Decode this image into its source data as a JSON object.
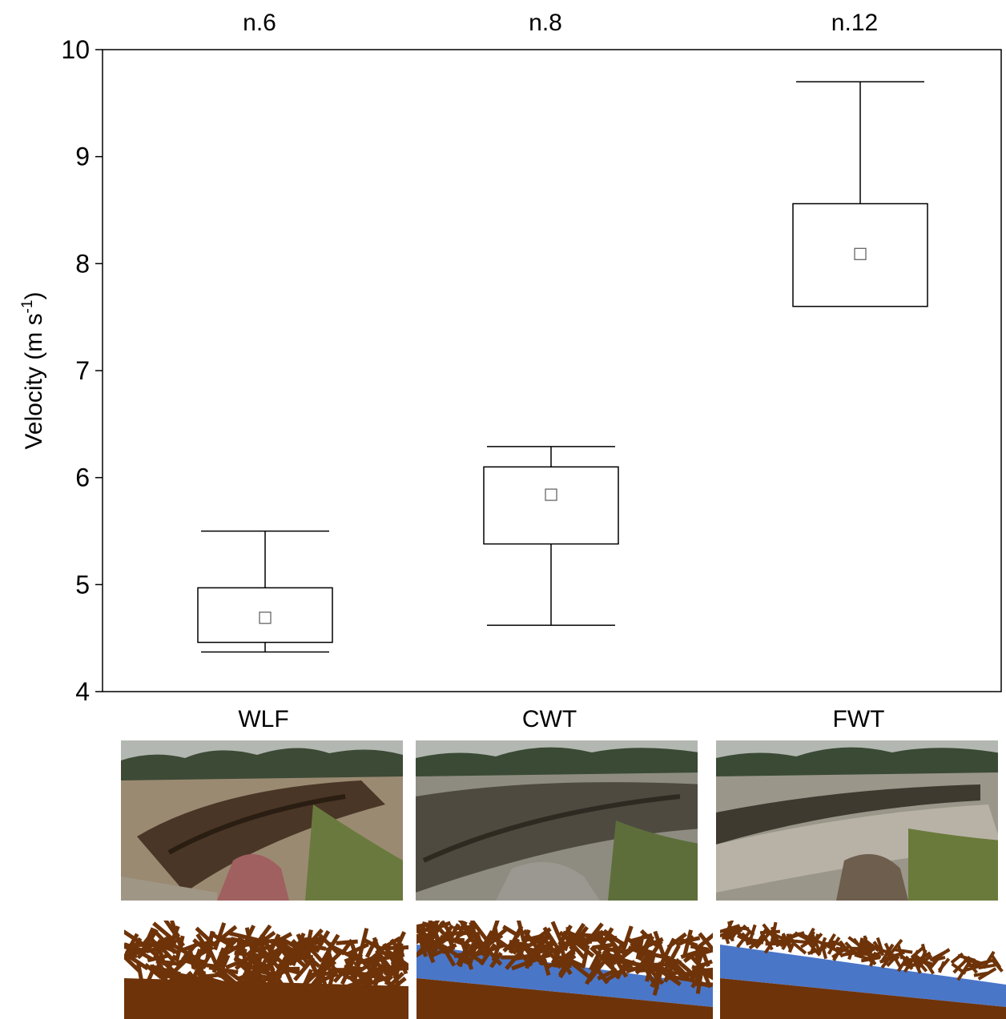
{
  "chart_data": {
    "type": "box",
    "title": "",
    "xlabel": "",
    "ylabel": "Velocity (m s-1)",
    "ylabel_parts": {
      "main": "Velocity (m s",
      "sup": "-1",
      "end": ")"
    },
    "ylim": [
      4,
      10
    ],
    "yticks": [
      "4",
      "5",
      "6",
      "7",
      "8",
      "9",
      "10"
    ],
    "categories": [
      "WLF",
      "CWT",
      "FWT"
    ],
    "sample_sizes": [
      "n.6",
      "n.8",
      "n.12"
    ],
    "series": [
      {
        "category": "WLF",
        "whisker_low": 4.37,
        "q1": 4.46,
        "mean": 4.69,
        "q3": 4.97,
        "whisker_high": 5.5
      },
      {
        "category": "CWT",
        "whisker_low": 4.62,
        "q1": 5.38,
        "mean": 5.84,
        "q3": 6.1,
        "whisker_high": 6.29
      },
      {
        "category": "FWT",
        "whisker_low": 7.6,
        "q1": 7.6,
        "mean": 8.09,
        "q3": 8.56,
        "whisker_high": 9.7
      }
    ],
    "grid": false,
    "legend": "none"
  },
  "illustrations": [
    {
      "category": "WLF",
      "photo": "wood-log-jam-photo-icon",
      "sketch": "wood-log-jam-sketch-icon",
      "water": false
    },
    {
      "category": "CWT",
      "photo": "coarse-wood-flow-photo-icon",
      "sketch": "coarse-wood-flow-sketch-icon",
      "water": true
    },
    {
      "category": "FWT",
      "photo": "fine-wood-flow-photo-icon",
      "sketch": "fine-wood-flow-sketch-icon",
      "water": true
    }
  ],
  "colors": {
    "axis": "#000000",
    "box_fill": "#ffffff",
    "mean_marker": "#666666",
    "wood": "#6e3309",
    "water": "#4a76c8",
    "sky": "#b4b8b2",
    "trees": "#3a4a35"
  }
}
